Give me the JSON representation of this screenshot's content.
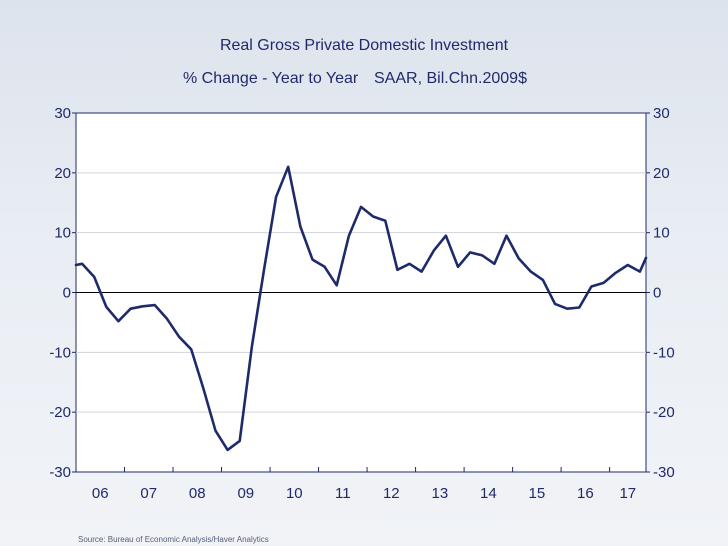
{
  "chart_data": {
    "type": "line",
    "title": "Real Gross Private Domestic Investment",
    "subtitle_left": "% Change - Year to Year",
    "subtitle_right": "SAAR, Bil.Chn.2009$",
    "source": "Source:  Bureau of Economic Analysis/Haver Analytics",
    "ylim": [
      -30,
      30
    ],
    "y_ticks": [
      30,
      20,
      10,
      0,
      -10,
      -20,
      -30
    ],
    "x_tick_labels": [
      "06",
      "07",
      "08",
      "09",
      "10",
      "11",
      "12",
      "13",
      "14",
      "15",
      "16",
      "17"
    ],
    "x_start": 2006.0,
    "x_end": 2017.75,
    "grid": true,
    "zero_line": true,
    "colors": {
      "line": "#1f2a6b",
      "text": "#1f2a6b",
      "plot_bg": "#ffffff",
      "grid": "#d0d3da"
    },
    "series": [
      {
        "name": "Real Gross Private Domestic Investment",
        "x": [
          2006.0,
          2006.125,
          2006.375,
          2006.625,
          2006.875,
          2007.125,
          2007.375,
          2007.625,
          2007.875,
          2008.125,
          2008.375,
          2008.625,
          2008.875,
          2009.125,
          2009.375,
          2009.625,
          2009.875,
          2010.125,
          2010.375,
          2010.625,
          2010.875,
          2011.125,
          2011.375,
          2011.625,
          2011.875,
          2012.125,
          2012.375,
          2012.625,
          2012.875,
          2013.125,
          2013.375,
          2013.625,
          2013.875,
          2014.125,
          2014.375,
          2014.625,
          2014.875,
          2015.125,
          2015.375,
          2015.625,
          2015.875,
          2016.125,
          2016.375,
          2016.625,
          2016.875,
          2017.125,
          2017.375,
          2017.625,
          2017.75
        ],
        "y": [
          4.6,
          4.8,
          2.6,
          -2.4,
          -4.8,
          -2.7,
          -2.3,
          -2.1,
          -4.4,
          -7.4,
          -9.5,
          -16.0,
          -23.1,
          -26.3,
          -24.8,
          -9.0,
          3.8,
          16.0,
          21.0,
          11.0,
          5.5,
          4.3,
          1.2,
          9.5,
          14.3,
          12.7,
          12.0,
          3.8,
          4.8,
          3.5,
          7.0,
          9.5,
          4.3,
          6.7,
          6.2,
          4.8,
          9.5,
          5.7,
          3.5,
          2.1,
          -1.9,
          -2.7,
          -2.5,
          1.0,
          1.6,
          3.3,
          4.6,
          3.5,
          5.8
        ]
      }
    ]
  }
}
